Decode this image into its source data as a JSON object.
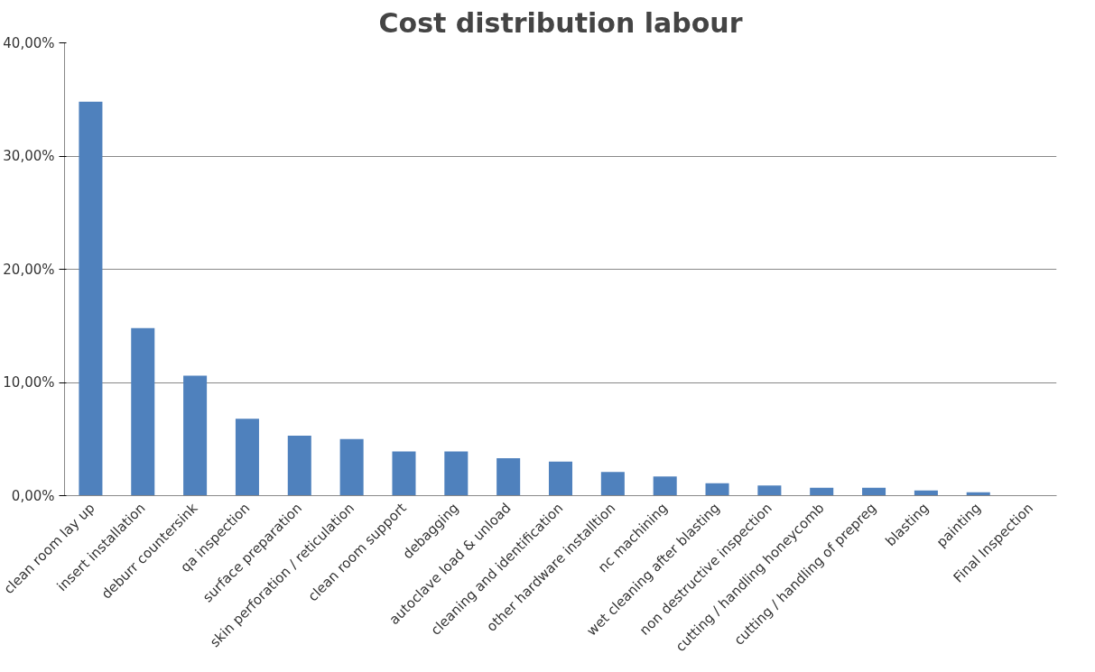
{
  "chart_data": {
    "type": "bar",
    "title": "Cost distribution labour",
    "categories": [
      "clean room lay up",
      "insert installation",
      "deburr countersink",
      "qa inspection",
      "surface preparation",
      "skin perforation / reticulation",
      "clean room support",
      "debagging",
      "autoclave load & unload",
      "cleaning and identification",
      "other hardware installtion",
      "nc machining",
      "wet cleaning after blasting",
      "non destructive inspection",
      "cutting / handling honeycomb",
      "cutting / handling of prepreg",
      "blasting",
      "painting",
      "Final Inspection"
    ],
    "values": [
      34.8,
      14.8,
      10.6,
      6.8,
      5.3,
      5.0,
      3.9,
      3.9,
      3.3,
      3.0,
      2.1,
      1.7,
      1.1,
      0.9,
      0.7,
      0.7,
      0.45,
      0.3,
      0
    ],
    "color": "#4f81bd",
    "ylim": [
      0,
      40
    ],
    "yticks": [
      {
        "value": 0,
        "label": "0,00%"
      },
      {
        "value": 10,
        "label": "10,00%"
      },
      {
        "value": 20,
        "label": "20,00%"
      },
      {
        "value": 30,
        "label": "30,00%"
      },
      {
        "value": 40,
        "label": "40,00%"
      }
    ],
    "grid": "y"
  }
}
